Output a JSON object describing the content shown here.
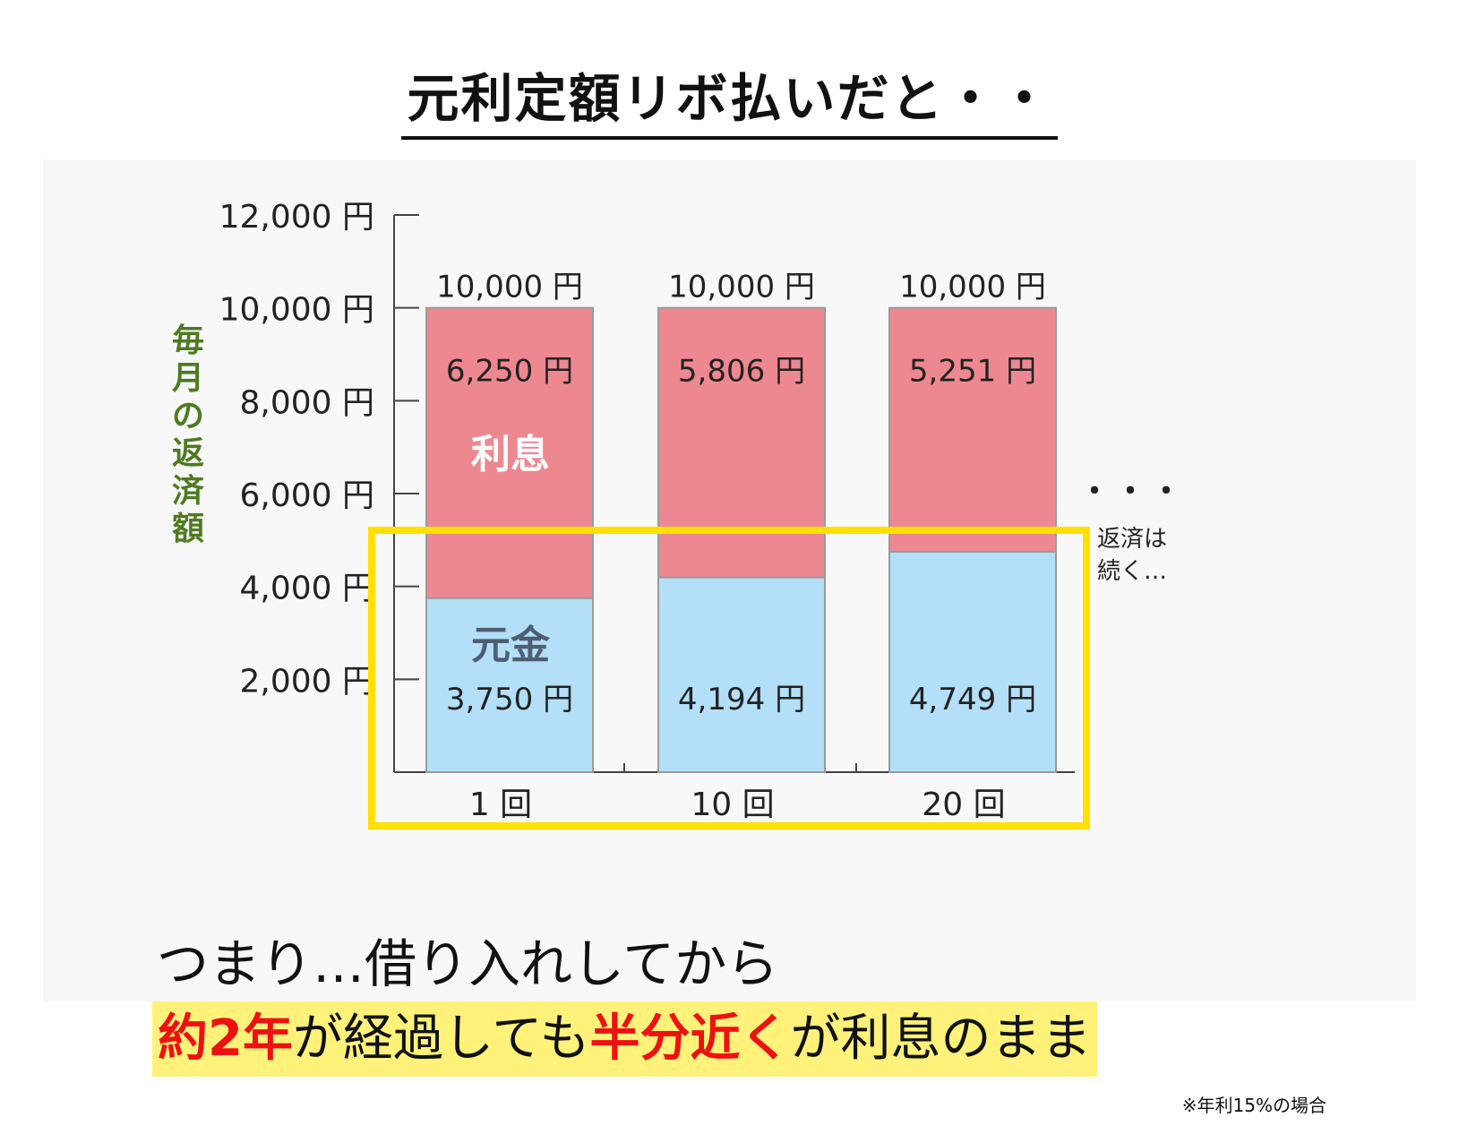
{
  "title": "元利定額リボ払いだと・・",
  "chart_data": {
    "type": "bar",
    "stacked": true,
    "categories": [
      "1 回",
      "10 回",
      "20 回"
    ],
    "ylabel": "毎月の返済額",
    "ylim": [
      0,
      12000
    ],
    "yticks": [
      {
        "value": 2000,
        "label": "2,000 円"
      },
      {
        "value": 4000,
        "label": "4,000 円"
      },
      {
        "value": 6000,
        "label": "6,000 円"
      },
      {
        "value": 8000,
        "label": "8,000 円"
      },
      {
        "value": 10000,
        "label": "10,000 円"
      },
      {
        "value": 12000,
        "label": "12,000 円"
      }
    ],
    "series": [
      {
        "name": "元金",
        "color": "#b3dff8",
        "values": [
          3750,
          4194,
          4749
        ],
        "labels": [
          "3,750 円",
          "4,194 円",
          "4,749 円"
        ]
      },
      {
        "name": "利息",
        "color": "#ee8890",
        "values": [
          6250,
          5806,
          5251
        ],
        "labels": [
          "6,250 円",
          "5,806 円",
          "5,251 円"
        ]
      }
    ],
    "totals": [
      "10,000 円",
      "10,000 円",
      "10,000 円"
    ],
    "continuation_dots": "・・・",
    "continuation_note": [
      "返済は",
      "続く…"
    ],
    "highlight_color": "#ffe000",
    "ylabel_color": "#4e7a22"
  },
  "caption": {
    "line1": "つまり…借り入れしてから",
    "line2_parts": [
      {
        "text": "約2年",
        "emphasis": true
      },
      {
        "text": "が経過しても",
        "emphasis": false
      },
      {
        "text": "半分近く",
        "emphasis": true
      },
      {
        "text": "が利息のまま",
        "emphasis": false
      }
    ]
  },
  "footnote": "※年利15%の場合"
}
